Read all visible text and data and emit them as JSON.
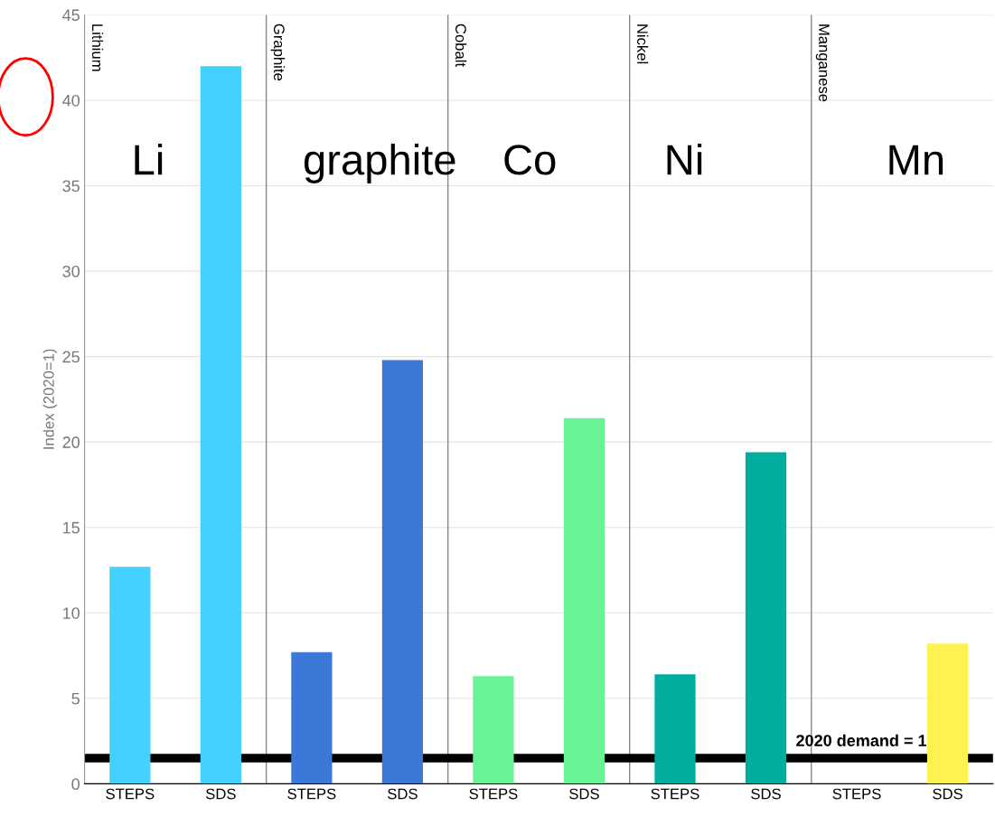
{
  "chart_data": {
    "type": "bar",
    "ylabel": "Index (2020=1)",
    "categories": [
      "STEPS",
      "SDS",
      "STEPS",
      "SDS",
      "STEPS",
      "SDS",
      "STEPS",
      "SDS",
      "STEPS",
      "SDS"
    ],
    "values": [
      12.7,
      42.0,
      7.7,
      24.8,
      6.3,
      21.4,
      6.4,
      19.4,
      null,
      8.2
    ],
    "colors": [
      "#45d1fd",
      "#45d1fd",
      "#3c78d8",
      "#3c78d8",
      "#69f394",
      "#69f394",
      "#00ad9f",
      "#00ad9f",
      "#fef150",
      "#fef150"
    ],
    "ylim": [
      0,
      45
    ],
    "yticks": [
      0,
      5,
      10,
      15,
      20,
      25,
      30,
      35,
      40,
      45
    ],
    "grid": "y",
    "ref_lines": [
      {
        "axis": "y",
        "value": 1.5,
        "label": "2020 demand = 1",
        "color": "#000000"
      }
    ],
    "annotations": [
      "Lithium",
      "Graphite",
      "Cobalt",
      "Nickel",
      "Manganese",
      "Li",
      "graphite",
      "Co",
      "Ni",
      "Mn"
    ]
  }
}
